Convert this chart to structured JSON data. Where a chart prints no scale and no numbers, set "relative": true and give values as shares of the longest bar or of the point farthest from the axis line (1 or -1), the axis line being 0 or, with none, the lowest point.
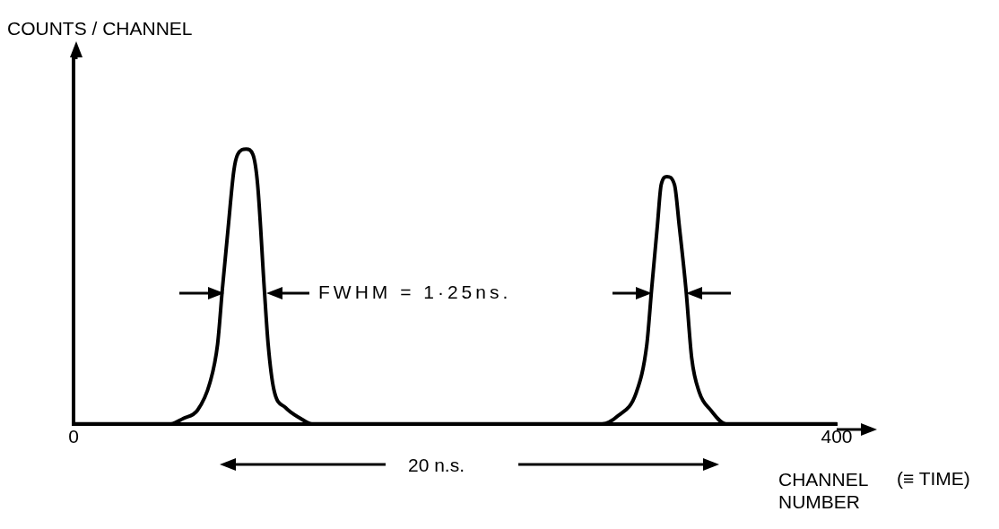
{
  "chart_data": {
    "type": "line",
    "relative": true,
    "xlabel": "CHANNEL NUMBER",
    "xlim": [
      0,
      400
    ],
    "xticks": [
      0,
      400
    ],
    "grid": false,
    "legend": false,
    "marker": "none",
    "line_style": "solid",
    "annotations": [
      "COUNTS / CHANNEL",
      "FWHM = 1·25ns.",
      "20 n.s.",
      "(≡ TIME)"
    ],
    "series": [
      {
        "color": "#000000",
        "x": [
          0,
          51,
          57.5,
          65,
          71.5,
          75.5,
          78,
          81,
          84,
          86,
          90.5,
          94,
          96.5,
          100,
          102,
          105,
          111,
          119,
          125,
          277,
          285.5,
          295,
          300.5,
          303,
          306,
          308,
          311,
          315,
          317.5,
          321,
          324,
          328,
          334,
          342,
          400
        ],
        "values": [
          0,
          0,
          0.02,
          0.05,
          0.15,
          0.29,
          0.49,
          0.71,
          0.92,
          0.98,
          1,
          0.98,
          0.87,
          0.49,
          0.29,
          0.125,
          0.06,
          0.02,
          0,
          0,
          0.03,
          0.115,
          0.29,
          0.49,
          0.72,
          0.87,
          0.9,
          0.87,
          0.72,
          0.49,
          0.24,
          0.115,
          0.05,
          0,
          0
        ]
      }
    ]
  }
}
